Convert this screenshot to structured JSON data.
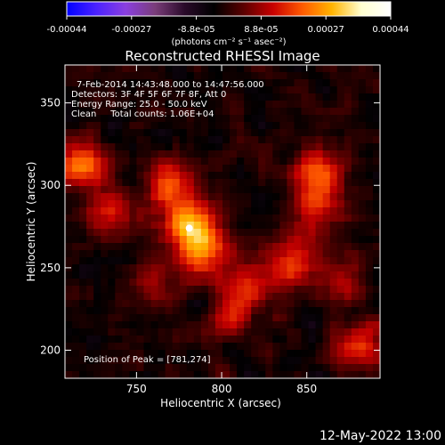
{
  "chart_data": {
    "type": "heatmap",
    "title": "Reconstructed RHESSI Image",
    "xlabel": "Heliocentric X (arcsec)",
    "ylabel": "Heliocentric Y (arcsec)",
    "xlim": [
      708,
      893
    ],
    "ylim": [
      183,
      373
    ],
    "x_ticks": [
      750,
      800,
      850
    ],
    "y_ticks": [
      200,
      250,
      300,
      350
    ],
    "colorbar": {
      "tick_labels": [
        "-0.00044",
        "-0.00027",
        "-8.8e-05",
        "8.8e-05",
        "0.00027",
        "0.00044"
      ],
      "range": [
        -0.00044,
        0.00044
      ],
      "unit_label": "(photons cm⁻² s⁻¹ asec⁻²)",
      "colors": [
        "#0000ff",
        "#4b22ff",
        "#8a3fe0",
        "#7a3d7a",
        "#2a0a2a",
        "#000000",
        "#5a0000",
        "#c80000",
        "#ff5a00",
        "#ffb400",
        "#ffffd0",
        "#ffffff"
      ]
    },
    "annotations": [
      "7-Feb-2014 14:43:48.000 to 14:47:56.000",
      "Detectors: 3F 4F 5F 6F 7F 8F, Att 0",
      "Energy Range: 25.0 - 50.0 keV",
      "Clean     Total counts: 1.06E+04",
      "Position of Peak = [781,274]"
    ],
    "peak_position": [
      781,
      274
    ],
    "bright_sources": [
      {
        "x": 781,
        "y": 275,
        "intensity": 1.0
      },
      {
        "x": 770,
        "y": 300,
        "intensity": 0.75
      },
      {
        "x": 790,
        "y": 258,
        "intensity": 0.7
      },
      {
        "x": 718,
        "y": 313,
        "intensity": 0.8
      },
      {
        "x": 735,
        "y": 283,
        "intensity": 0.6
      },
      {
        "x": 858,
        "y": 292,
        "intensity": 0.65
      },
      {
        "x": 858,
        "y": 310,
        "intensity": 0.55
      },
      {
        "x": 835,
        "y": 250,
        "intensity": 0.5
      },
      {
        "x": 812,
        "y": 238,
        "intensity": 0.5
      },
      {
        "x": 805,
        "y": 220,
        "intensity": 0.45
      },
      {
        "x": 882,
        "y": 203,
        "intensity": 0.65
      },
      {
        "x": 848,
        "y": 265,
        "intensity": 0.4
      },
      {
        "x": 760,
        "y": 243,
        "intensity": 0.35
      },
      {
        "x": 870,
        "y": 245,
        "intensity": 0.4
      }
    ]
  },
  "footer": {
    "timestamp": "12-May-2022 13:00"
  }
}
